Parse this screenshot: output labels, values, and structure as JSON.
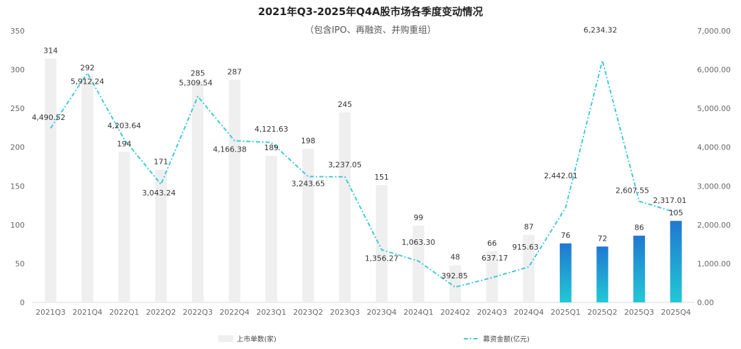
{
  "chart_data": {
    "type": "bar",
    "title": "2021年Q3-2025年Q4A股市场各季度变动情况",
    "subtitle": "（包含IPO、再融资、并购重组）",
    "categories": [
      "2021Q3",
      "2021Q4",
      "2022Q1",
      "2022Q2",
      "2022Q3",
      "2022Q4",
      "2023Q1",
      "2023Q2",
      "2023Q3",
      "2023Q4",
      "2024Q1",
      "2024Q2",
      "2024Q3",
      "2024Q4",
      "2025Q1",
      "2025Q2",
      "2025Q3",
      "2025Q4"
    ],
    "series": [
      {
        "name": "上市单数(家)",
        "type": "bar",
        "axis": "left",
        "values": [
          314,
          292,
          194,
          171,
          285,
          287,
          189,
          198,
          245,
          151,
          99,
          48,
          66,
          87,
          76,
          72,
          86,
          105
        ],
        "labels": [
          "314",
          "292",
          "194",
          "171",
          "285",
          "287",
          "189",
          "198",
          "245",
          "151",
          "99",
          "48",
          "66",
          "87",
          "76",
          "72",
          "86",
          "105"
        ]
      },
      {
        "name": "募资金额(亿元)",
        "type": "line",
        "axis": "right",
        "values": [
          4490.52,
          5912.24,
          4203.64,
          3043.24,
          5309.54,
          4166.38,
          4121.63,
          3243.65,
          3237.05,
          1356.27,
          1063.3,
          392.85,
          637.17,
          915.63,
          2442.01,
          6234.32,
          2607.55,
          2317.01
        ],
        "labels": [
          "4,490.52",
          "5,912.24",
          "4,203.64",
          "3,043.24",
          "5,309.54",
          "4,166.38",
          "4,121.63",
          "3,243.65",
          "3,237.05",
          "1,356.27",
          "1,063.30",
          "392.85",
          "637.17",
          "915.63",
          "2,442.01",
          "6,234.32",
          "2,607.55",
          "2,317.01"
        ]
      }
    ],
    "y_left": {
      "lim": [
        0,
        350
      ],
      "ticks": [
        "0",
        "50",
        "100",
        "150",
        "200",
        "250",
        "300",
        "350"
      ]
    },
    "y_right": {
      "lim": [
        0,
        7000
      ],
      "ticks": [
        "0.00",
        "1,000.00",
        "2,000.00",
        "3,000.00",
        "4,000.00",
        "5,000.00",
        "6,000.00",
        "7,000.00"
      ]
    },
    "grid": false,
    "legend": "bottom",
    "colors": {
      "bar_gray": "#efefef",
      "bar_blue_top": "#1f78d1",
      "bar_blue_bottom": "#22c8d6",
      "line": "#3fc8d6"
    }
  }
}
